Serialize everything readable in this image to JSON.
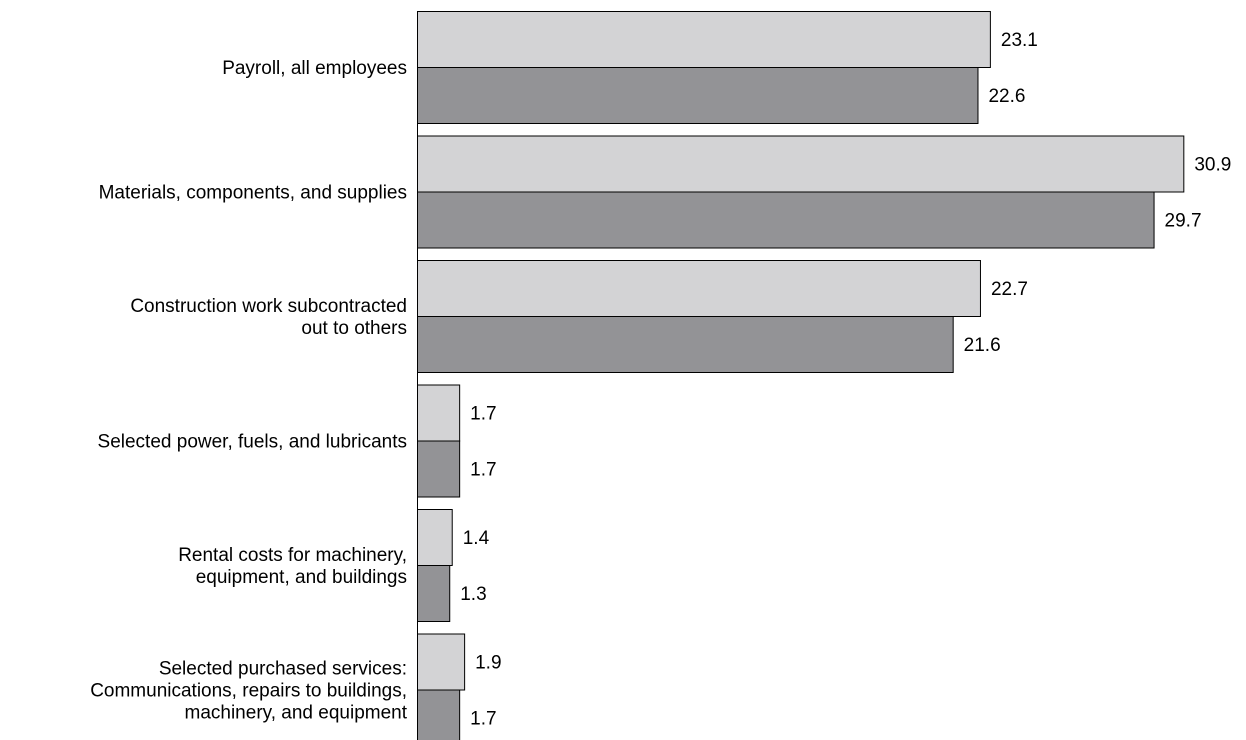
{
  "chart_data": {
    "type": "bar",
    "orientation": "horizontal",
    "categories": [
      [
        "Payroll, all employees"
      ],
      [
        "Materials, components, and supplies"
      ],
      [
        "Construction work subcontracted",
        "out to others"
      ],
      [
        "Selected power, fuels, and lubricants"
      ],
      [
        "Rental costs for machinery,",
        "equipment, and buildings"
      ],
      [
        "Selected purchased services:",
        "Communications, repairs to buildings,",
        "machinery, and equipment"
      ]
    ],
    "series": [
      {
        "color": "#d3d3d5",
        "values": [
          23.1,
          30.9,
          22.7,
          1.7,
          1.4,
          1.9
        ]
      },
      {
        "color": "#939396",
        "values": [
          22.6,
          29.7,
          21.6,
          1.7,
          1.3,
          1.7
        ]
      }
    ],
    "value_labels": [
      [
        "23.1",
        "30.9",
        "22.7",
        "1.7",
        "1.4",
        "1.9"
      ],
      [
        "22.6",
        "29.7",
        "21.6",
        "1.7",
        "1.3",
        "1.7"
      ]
    ],
    "xlim": [
      0,
      31.5
    ],
    "grid": false,
    "legend": "none"
  }
}
